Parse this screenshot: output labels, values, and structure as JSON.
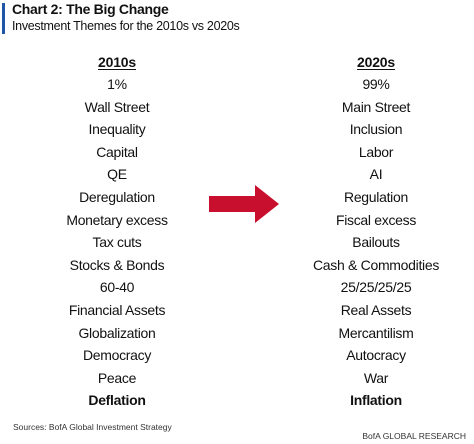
{
  "header": {
    "title": "Chart 2: The Big Change",
    "subtitle": "Investment Themes for the 2010s vs 2020s"
  },
  "colors": {
    "accent_bar": "#1f56a5",
    "arrow": "#c8102e"
  },
  "left_column": {
    "header": "2010s",
    "items": [
      "1%",
      "Wall Street",
      "Inequality",
      "Capital",
      "QE",
      "Deregulation",
      "Monetary excess",
      "Tax cuts",
      "Stocks & Bonds",
      "60-40",
      "Financial Assets",
      "Globalization",
      "Democracy",
      "Peace",
      "Deflation"
    ]
  },
  "right_column": {
    "header": "2020s",
    "items": [
      "99%",
      "Main Street",
      "Inclusion",
      "Labor",
      "AI",
      "Regulation",
      "Fiscal excess",
      "Bailouts",
      "Cash & Commodities",
      "25/25/25/25",
      "Real Assets",
      "Mercantilism",
      "Autocracy",
      "War",
      "Inflation"
    ]
  },
  "arrow_icon": "right-arrow-icon",
  "footer": {
    "source": "Sources: BofA Global Investment Strategy",
    "brand": "BofA GLOBAL RESEARCH"
  }
}
